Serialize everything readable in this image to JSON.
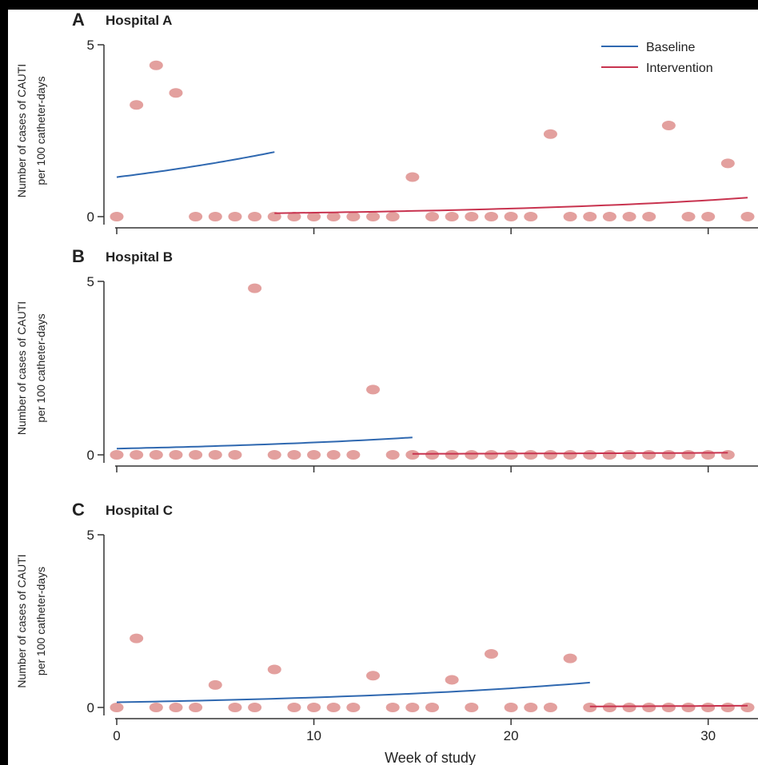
{
  "colors": {
    "baseline": "#2f68b0",
    "intervention": "#c8334f",
    "points": "#e3a09e",
    "axis": "#333333"
  },
  "figure": {
    "xlabel": "Week of study",
    "ylabel_line1": "Number of cases of CAUTI",
    "ylabel_line2": "per 100 catheter-days"
  },
  "legend": {
    "position": "top-right",
    "baseline_label": "Baseline",
    "intervention_label": "Intervention"
  },
  "chart_data": [
    {
      "type": "scatter",
      "panel": "A",
      "title": "Hospital A",
      "xlim": [
        0,
        32
      ],
      "ylim": [
        0,
        5
      ],
      "yticks": [
        0,
        5
      ],
      "xticks": [
        0,
        10,
        20,
        30
      ],
      "xtick_labels_visible": false,
      "points": [
        [
          0,
          0
        ],
        [
          1,
          3.25
        ],
        [
          2,
          4.4
        ],
        [
          3,
          3.6
        ],
        [
          4,
          0
        ],
        [
          5,
          0
        ],
        [
          6,
          0
        ],
        [
          7,
          0
        ],
        [
          8,
          0
        ],
        [
          9,
          0
        ],
        [
          10,
          0
        ],
        [
          11,
          0
        ],
        [
          12,
          0
        ],
        [
          13,
          0
        ],
        [
          14,
          0
        ],
        [
          15,
          1.15
        ],
        [
          16,
          0
        ],
        [
          17,
          0
        ],
        [
          18,
          0
        ],
        [
          19,
          0
        ],
        [
          20,
          0
        ],
        [
          21,
          0
        ],
        [
          22,
          2.4
        ],
        [
          23,
          0
        ],
        [
          24,
          0
        ],
        [
          25,
          0
        ],
        [
          26,
          0
        ],
        [
          27,
          0
        ],
        [
          28,
          2.65
        ],
        [
          29,
          0
        ],
        [
          30,
          0
        ],
        [
          31,
          1.55
        ],
        [
          32,
          0
        ]
      ],
      "series": [
        {
          "name": "Baseline",
          "x": [
            0,
            8
          ],
          "y": [
            1.15,
            1.88
          ],
          "shape": "exponential"
        },
        {
          "name": "Intervention",
          "x": [
            8,
            32
          ],
          "y": [
            0.1,
            0.55
          ],
          "shape": "exponential"
        }
      ]
    },
    {
      "type": "scatter",
      "panel": "B",
      "title": "Hospital B",
      "xlim": [
        0,
        32
      ],
      "ylim": [
        0,
        5
      ],
      "yticks": [
        0,
        5
      ],
      "xticks": [
        0,
        10,
        20,
        30
      ],
      "xtick_labels_visible": false,
      "points": [
        [
          0,
          0
        ],
        [
          1,
          0
        ],
        [
          2,
          0
        ],
        [
          3,
          0
        ],
        [
          4,
          0
        ],
        [
          5,
          0
        ],
        [
          6,
          0
        ],
        [
          7,
          4.8
        ],
        [
          8,
          0
        ],
        [
          9,
          0
        ],
        [
          10,
          0
        ],
        [
          11,
          0
        ],
        [
          12,
          0
        ],
        [
          13,
          1.88
        ],
        [
          14,
          0
        ],
        [
          15,
          0
        ],
        [
          16,
          0
        ],
        [
          17,
          0
        ],
        [
          18,
          0
        ],
        [
          19,
          0
        ],
        [
          20,
          0
        ],
        [
          21,
          0
        ],
        [
          22,
          0
        ],
        [
          23,
          0
        ],
        [
          24,
          0
        ],
        [
          25,
          0
        ],
        [
          26,
          0
        ],
        [
          27,
          0
        ],
        [
          28,
          0
        ],
        [
          29,
          0
        ],
        [
          30,
          0
        ],
        [
          31,
          0
        ]
      ],
      "series": [
        {
          "name": "Baseline",
          "x": [
            0,
            15
          ],
          "y": [
            0.18,
            0.5
          ],
          "shape": "exponential"
        },
        {
          "name": "Intervention",
          "x": [
            15,
            31
          ],
          "y": [
            0.03,
            0.06
          ],
          "shape": "exponential"
        }
      ]
    },
    {
      "type": "scatter",
      "panel": "C",
      "title": "Hospital C",
      "xlim": [
        0,
        32
      ],
      "ylim": [
        0,
        5
      ],
      "yticks": [
        0,
        5
      ],
      "xticks": [
        0,
        10,
        20,
        30
      ],
      "xtick_labels_visible": true,
      "points": [
        [
          0,
          0
        ],
        [
          1,
          2.0
        ],
        [
          2,
          0
        ],
        [
          3,
          0
        ],
        [
          4,
          0
        ],
        [
          5,
          0.65
        ],
        [
          6,
          0
        ],
        [
          7,
          0
        ],
        [
          8,
          1.1
        ],
        [
          9,
          0
        ],
        [
          10,
          0
        ],
        [
          11,
          0
        ],
        [
          12,
          0
        ],
        [
          13,
          0.92
        ],
        [
          14,
          0
        ],
        [
          15,
          0
        ],
        [
          16,
          0
        ],
        [
          17,
          0.8
        ],
        [
          18,
          0
        ],
        [
          19,
          1.55
        ],
        [
          20,
          0
        ],
        [
          21,
          0
        ],
        [
          22,
          0
        ],
        [
          23,
          1.42
        ],
        [
          24,
          0
        ],
        [
          25,
          0
        ],
        [
          26,
          0
        ],
        [
          27,
          0
        ],
        [
          28,
          0
        ],
        [
          29,
          0
        ],
        [
          30,
          0
        ],
        [
          31,
          0
        ],
        [
          32,
          0
        ]
      ],
      "series": [
        {
          "name": "Baseline",
          "x": [
            0,
            24
          ],
          "y": [
            0.15,
            0.72
          ],
          "shape": "exponential"
        },
        {
          "name": "Intervention",
          "x": [
            24,
            32
          ],
          "y": [
            0.03,
            0.05
          ],
          "shape": "exponential"
        }
      ]
    }
  ]
}
